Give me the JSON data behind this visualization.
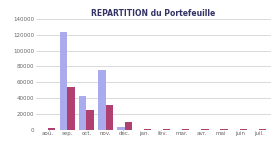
{
  "title": "REPARTITION du Portefeuille",
  "categories": [
    "aoû.",
    "sep.",
    "oct.",
    "nov.",
    "déc.",
    "jan.",
    "fév.",
    "mar.",
    "avr.",
    "mai",
    "juin",
    "juil."
  ],
  "series1": [
    0,
    124000,
    42000,
    75000,
    3000,
    0,
    0,
    0,
    0,
    0,
    0,
    0
  ],
  "series2": [
    1500,
    54000,
    25000,
    31000,
    10000,
    500,
    300,
    500,
    300,
    300,
    300,
    500
  ],
  "color1": "#aaaaee",
  "color2": "#b04070",
  "ylim": [
    0,
    140000
  ],
  "yticks": [
    0,
    20000,
    40000,
    60000,
    80000,
    100000,
    120000,
    140000
  ],
  "title_fontsize": 5.5,
  "tick_fontsize": 4.0,
  "bar_width": 0.38,
  "background_color": "#ffffff",
  "grid_color": "#cccccc",
  "title_color": "#333366",
  "tick_color": "#666666"
}
